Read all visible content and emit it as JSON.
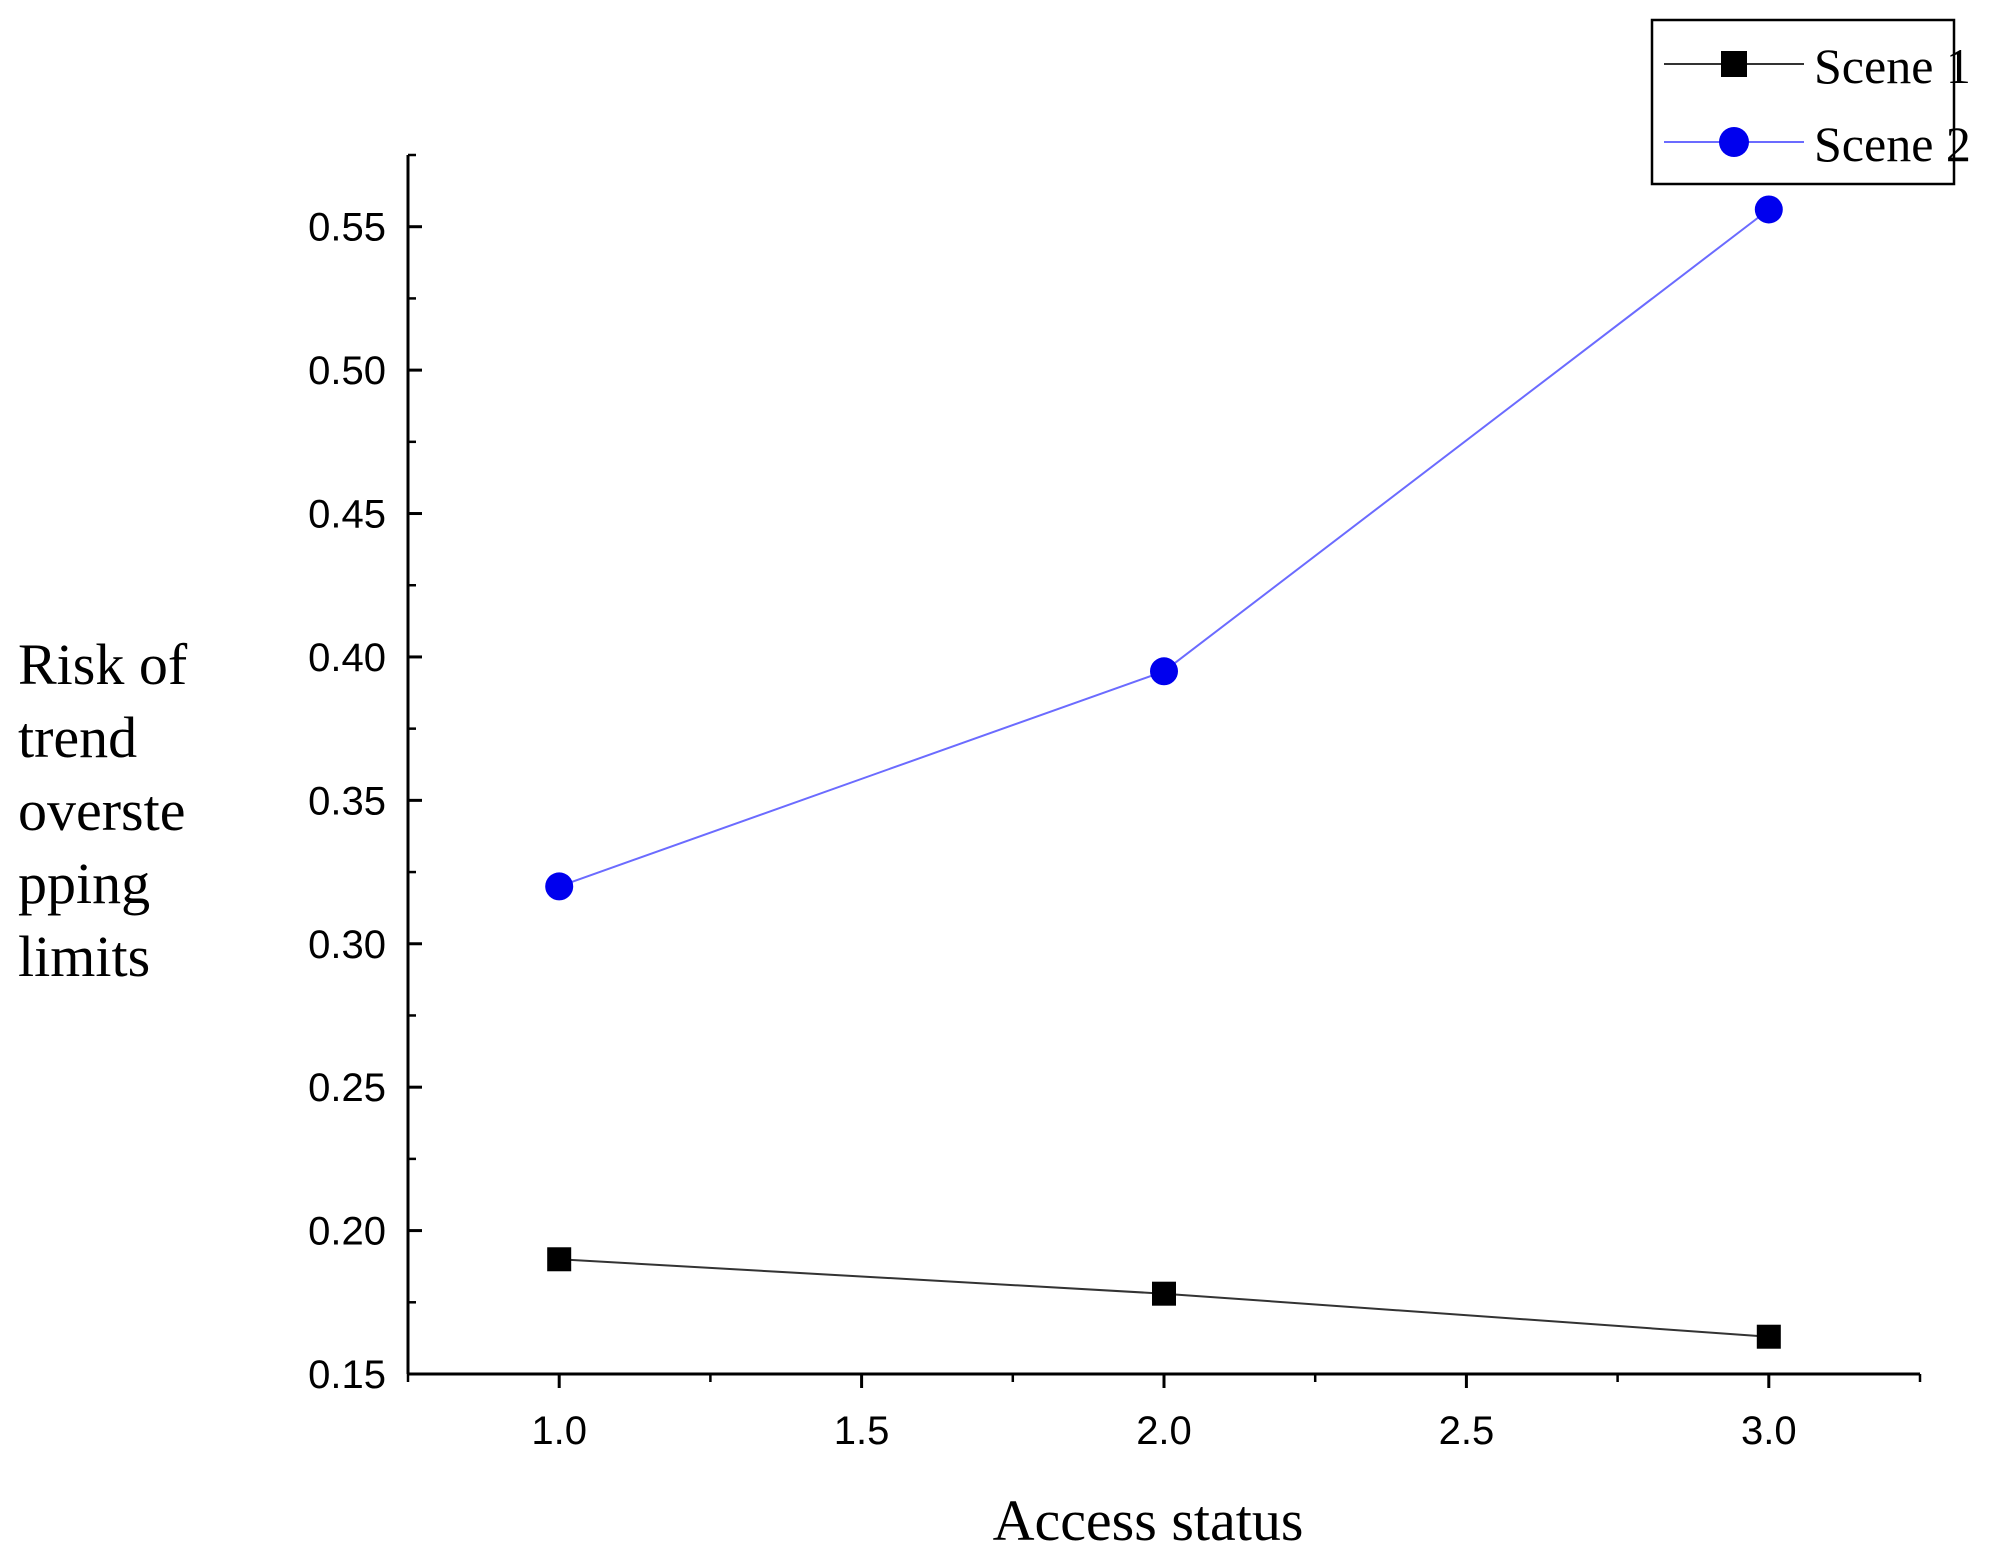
{
  "chart_data": {
    "type": "line",
    "title": "",
    "xlabel": "Access status",
    "ylabel_lines": [
      "Risk of",
      "trend",
      "overste",
      "pping",
      "limits"
    ],
    "xlim": [
      0.75,
      3.25
    ],
    "ylim": [
      0.15,
      0.575
    ],
    "xticks": [
      1.0,
      1.5,
      2.0,
      2.5,
      3.0
    ],
    "xtick_labels": [
      "1.0",
      "1.5",
      "2.0",
      "2.5",
      "3.0"
    ],
    "yticks": [
      0.15,
      0.2,
      0.25,
      0.3,
      0.35,
      0.4,
      0.45,
      0.5,
      0.55
    ],
    "ytick_labels": [
      "0.15",
      "0.20",
      "0.25",
      "0.30",
      "0.35",
      "0.40",
      "0.45",
      "0.50",
      "0.55"
    ],
    "grid": false,
    "legend_position": "top-right",
    "series": [
      {
        "name": "Scene 1",
        "color": "#000000",
        "line_color": "#333333",
        "marker": "square",
        "x": [
          1.0,
          2.0,
          3.0
        ],
        "values": [
          0.19,
          0.178,
          0.163
        ]
      },
      {
        "name": "Scene 2",
        "color": "#0000ee",
        "line_color": "#6b6bff",
        "marker": "circle",
        "x": [
          1.0,
          2.0,
          3.0
        ],
        "values": [
          0.32,
          0.395,
          0.556
        ]
      }
    ]
  }
}
